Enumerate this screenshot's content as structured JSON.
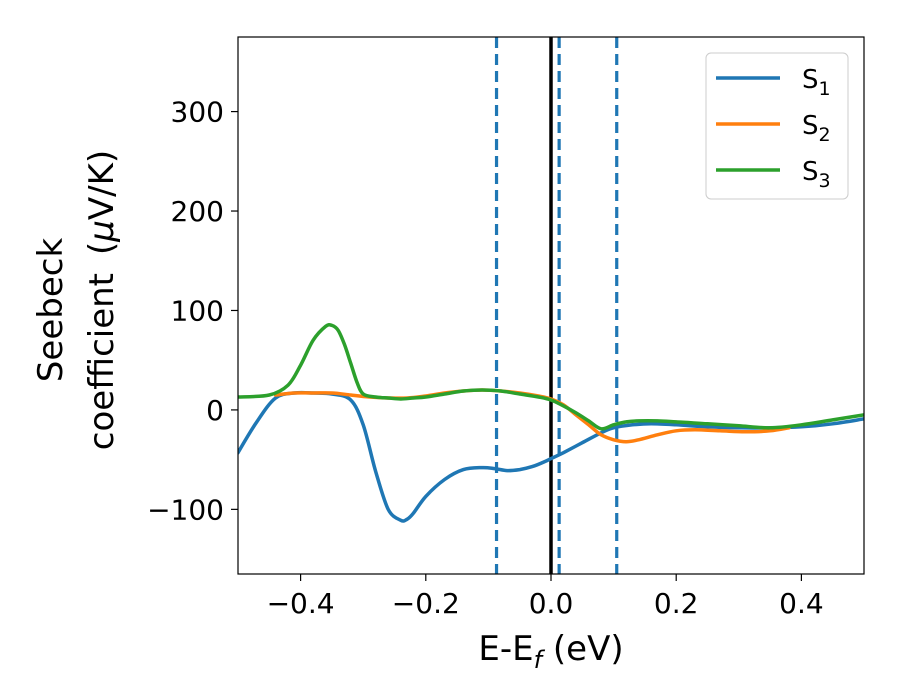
{
  "chart_data": {
    "type": "line",
    "title": "",
    "xlabel": "E-E",
    "xlabel_sub": "f",
    "xlabel_unit": " (eV)",
    "ylabel_line1": "Seebeck",
    "ylabel_line2": "coefficient",
    "ylabel_unit_open": "(",
    "ylabel_unit_mu": "μ",
    "ylabel_unit_rest": "V/K)",
    "xlim": [
      -0.5,
      0.5
    ],
    "ylim": [
      -165,
      375
    ],
    "xticks": [
      -0.4,
      -0.2,
      0.0,
      0.2,
      0.4
    ],
    "xtick_labels": [
      "−0.4",
      "−0.2",
      "0.0",
      "0.2",
      "0.4"
    ],
    "yticks": [
      -100,
      0,
      100,
      200,
      300
    ],
    "ytick_labels": [
      "−100",
      "0",
      "100",
      "200",
      "300"
    ],
    "grid": false,
    "legend_position": "top-right",
    "vlines": [
      {
        "x": 0.0,
        "style": "solid",
        "color": "#000000"
      },
      {
        "x": -0.087,
        "style": "dashed",
        "color": "#1f77b4"
      },
      {
        "x": 0.013,
        "style": "dashed",
        "color": "#1f77b4"
      },
      {
        "x": 0.105,
        "style": "dashed",
        "color": "#1f77b4"
      }
    ],
    "series": [
      {
        "name": "S",
        "name_sub": "1",
        "color": "#1f77b4",
        "x": [
          -0.5,
          -0.47,
          -0.44,
          -0.41,
          -0.38,
          -0.35,
          -0.32,
          -0.3,
          -0.28,
          -0.26,
          -0.24,
          -0.23,
          -0.22,
          -0.2,
          -0.17,
          -0.14,
          -0.11,
          -0.09,
          -0.07,
          -0.05,
          -0.03,
          -0.01,
          0.0,
          0.02,
          0.05,
          0.08,
          0.1,
          0.13,
          0.16,
          0.2,
          0.25,
          0.3,
          0.35,
          0.4,
          0.45,
          0.5
        ],
        "y": [
          -43,
          -12,
          12,
          17,
          17,
          16,
          10,
          -15,
          -62,
          -100,
          -111,
          -110,
          -104,
          -87,
          -70,
          -60,
          -58,
          -59,
          -61,
          -60,
          -57,
          -52,
          -49,
          -43,
          -33,
          -23,
          -18,
          -15,
          -14,
          -15,
          -17,
          -18,
          -18,
          -17,
          -14,
          -9
        ]
      },
      {
        "name": "S",
        "name_sub": "2",
        "color": "#ff7f0e",
        "x": [
          -0.44,
          -0.41,
          -0.38,
          -0.35,
          -0.32,
          -0.29,
          -0.26,
          -0.23,
          -0.2,
          -0.17,
          -0.14,
          -0.11,
          -0.08,
          -0.05,
          -0.02,
          0.0,
          0.02,
          0.04,
          0.06,
          0.08,
          0.1,
          0.12,
          0.14,
          0.17,
          0.2,
          0.23,
          0.27,
          0.31,
          0.35,
          0.38
        ],
        "y": [
          15,
          17,
          17,
          17,
          15,
          13,
          12,
          12,
          14,
          17,
          19,
          20,
          19,
          17,
          14,
          11,
          5,
          -5,
          -15,
          -25,
          -30,
          -32,
          -30,
          -25,
          -21,
          -20,
          -21,
          -22,
          -21,
          -18
        ]
      },
      {
        "name": "S",
        "name_sub": "3",
        "color": "#2ca02c",
        "x": [
          -0.5,
          -0.45,
          -0.42,
          -0.4,
          -0.38,
          -0.36,
          -0.35,
          -0.34,
          -0.33,
          -0.32,
          -0.31,
          -0.3,
          -0.28,
          -0.26,
          -0.24,
          -0.22,
          -0.2,
          -0.17,
          -0.14,
          -0.11,
          -0.08,
          -0.05,
          -0.02,
          0.0,
          0.02,
          0.04,
          0.06,
          0.08,
          0.1,
          0.12,
          0.14,
          0.17,
          0.2,
          0.25,
          0.3,
          0.35,
          0.4,
          0.45,
          0.5
        ],
        "y": [
          13,
          15,
          25,
          45,
          70,
          84,
          85,
          80,
          66,
          47,
          28,
          16,
          13,
          12,
          11,
          12,
          13,
          16,
          19,
          20,
          19,
          16,
          13,
          10,
          4,
          -3,
          -11,
          -19,
          -15,
          -12,
          -11,
          -11,
          -12,
          -14,
          -16,
          -18,
          -15,
          -10,
          -5
        ]
      }
    ]
  }
}
